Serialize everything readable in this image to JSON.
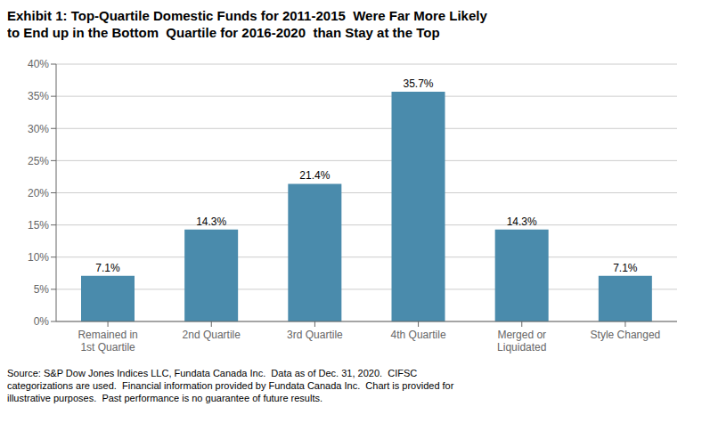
{
  "chart_data": {
    "type": "bar",
    "title": "Exhibit 1: Top-Quartile Domestic Funds for 2011-2015  Were Far More Likely\nto End up in the Bottom  Quartile for 2016-2020  than Stay at the Top",
    "categories": [
      "Remained in\n1st Quartile",
      "2nd Quartile",
      "3rd Quartile",
      "4th Quartile",
      "Merged or\nLiquidated",
      "Style Changed"
    ],
    "values": [
      7.1,
      14.3,
      21.4,
      35.7,
      14.3,
      7.1
    ],
    "value_labels": [
      "7.1%",
      "14.3%",
      "21.4%",
      "35.7%",
      "14.3%",
      "7.1%"
    ],
    "data_labels": true,
    "color": "#4a8bac",
    "ylim": [
      0,
      40
    ],
    "yticks": [
      {
        "value": 0,
        "label": "0%"
      },
      {
        "value": 5,
        "label": "5%"
      },
      {
        "value": 10,
        "label": "10%"
      },
      {
        "value": 15,
        "label": "15%"
      },
      {
        "value": 20,
        "label": "20%"
      },
      {
        "value": 25,
        "label": "25%"
      },
      {
        "value": 30,
        "label": "30%"
      },
      {
        "value": 35,
        "label": "35%"
      },
      {
        "value": 40,
        "label": "40%"
      }
    ],
    "grid": true,
    "annotations": [
      "Source: S&P Dow Jones Indices LLC, Fundata Canada Inc.  Data as of Dec. 31, 2020.  CIFSC\ncategorizations are used.  Financial information provided by Fundata Canada Inc.  Chart is provided for\nillustrative purposes.  Past performance is no guarantee of future results."
    ]
  }
}
